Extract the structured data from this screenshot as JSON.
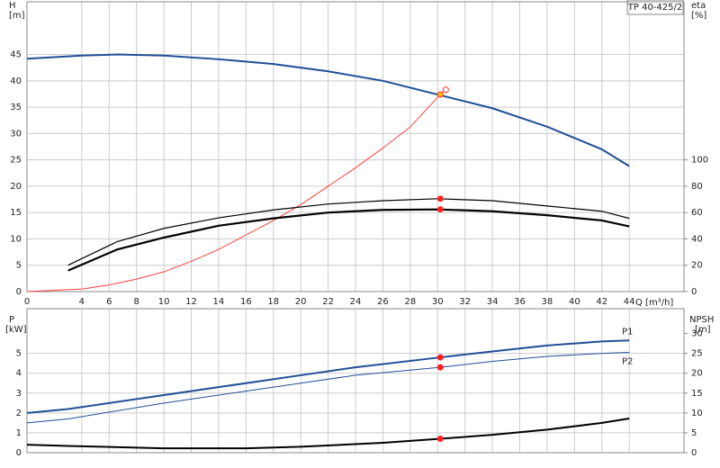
{
  "chart_data": [
    {
      "type": "line",
      "title": "TP 40-425/2",
      "ylabel": "H",
      "yunit": "[m]",
      "y2label": "eta",
      "y2unit": "[%]",
      "xlabel": "Q [m³/h]",
      "xlim": [
        0,
        48
      ],
      "xticks": [
        0,
        4,
        6,
        8,
        10,
        12,
        14,
        16,
        18,
        20,
        22,
        24,
        26,
        28,
        30,
        32,
        34,
        36,
        38,
        40,
        42,
        44
      ],
      "ylim": [
        0,
        55
      ],
      "yticks": [
        0,
        5,
        10,
        15,
        20,
        25,
        30,
        35,
        40,
        45
      ],
      "y2lim": [
        0,
        220
      ],
      "y2ticks": [
        0,
        20,
        40,
        60,
        80,
        100
      ],
      "grid": true,
      "series": [
        {
          "color": "#1f4e96",
          "width": 2,
          "x": [
            0,
            4,
            6.6,
            10,
            14,
            18,
            22,
            26,
            30,
            34,
            38,
            42,
            44
          ],
          "values": [
            44.2,
            44.8,
            45,
            44.8,
            44.1,
            43.2,
            41.8,
            40,
            37.4,
            34.8,
            31.3,
            27,
            23.8
          ]
        },
        {
          "color": "#ff4040",
          "width": 1,
          "axis": "y2",
          "x": [
            0,
            4,
            6,
            8,
            10,
            12,
            14,
            16,
            18,
            20,
            22,
            24,
            26,
            28,
            30.4
          ],
          "values": [
            0,
            2,
            5,
            9.5,
            15,
            23,
            32,
            43,
            54,
            66,
            80,
            94,
            109,
            125,
            152
          ]
        },
        {
          "color": "#000000",
          "width": 1.2,
          "axis": "y2",
          "x": [
            3,
            6.6,
            10,
            14,
            18,
            22,
            26,
            30,
            34,
            38,
            42,
            44
          ],
          "values": [
            20,
            38,
            48,
            56,
            62,
            66.5,
            69,
            70.5,
            69,
            65,
            61,
            55.6
          ]
        },
        {
          "color": "#000000",
          "width": 2.2,
          "axis": "y2",
          "x": [
            3,
            6.6,
            10,
            14,
            18,
            22,
            26,
            30,
            34,
            38,
            42,
            44
          ],
          "values": [
            16,
            32,
            41,
            50,
            55.6,
            60,
            62,
            62.4,
            61,
            58,
            54,
            49.5
          ]
        }
      ],
      "points": [
        {
          "x": 30.6,
          "y": 38.3,
          "color": "#ffffff",
          "stroke": "#ff3030"
        },
        {
          "x": 30.2,
          "y": 37.4,
          "color": "#f5c400",
          "stroke": "#ff3030"
        },
        {
          "x": 30.2,
          "y": 70.5,
          "axis": "y2",
          "color": "#ff2020",
          "stroke": "#ff2020"
        },
        {
          "x": 30.2,
          "y": 62.4,
          "axis": "y2",
          "color": "#ff2020",
          "stroke": "#ff2020"
        }
      ]
    },
    {
      "type": "line",
      "ylabel": "P",
      "yunit": "[kW]",
      "y2label": "NPSH",
      "y2unit": "[m]",
      "xlim": [
        0,
        48
      ],
      "ylim": [
        0,
        7.25
      ],
      "yticks": [
        0,
        1,
        2,
        3,
        4,
        5
      ],
      "y2lim": [
        0,
        36.25
      ],
      "y2ticks": [
        0,
        5,
        10,
        15,
        20,
        25,
        30
      ],
      "grid": true,
      "series": [
        {
          "name": "P1",
          "color": "#1f4e96",
          "width": 2,
          "x": [
            0,
            3,
            10,
            14,
            20,
            24,
            30.2,
            34,
            38,
            42,
            44
          ],
          "values": [
            2,
            2.2,
            2.9,
            3.3,
            3.9,
            4.3,
            4.8,
            5.1,
            5.4,
            5.6,
            5.65
          ]
        },
        {
          "name": "P2",
          "color": "#1f4e96",
          "width": 1,
          "x": [
            0,
            3,
            10,
            14,
            20,
            24,
            30.2,
            34,
            38,
            42,
            44
          ],
          "values": [
            1.5,
            1.7,
            2.5,
            2.9,
            3.5,
            3.9,
            4.3,
            4.6,
            4.85,
            5.0,
            5.05
          ]
        },
        {
          "color": "#000000",
          "width": 2,
          "axis": "y2",
          "x": [
            0,
            3,
            10,
            16,
            20,
            26,
            30.2,
            34,
            38,
            42,
            44
          ],
          "values": [
            2,
            1.7,
            1.1,
            1.1,
            1.5,
            2.5,
            3.5,
            4.5,
            5.8,
            7.5,
            8.6
          ]
        }
      ],
      "points": [
        {
          "x": 30.2,
          "y": 4.8,
          "color": "#ff2020",
          "stroke": "#ff2020"
        },
        {
          "x": 30.2,
          "y": 4.3,
          "color": "#ff2020",
          "stroke": "#ff2020"
        },
        {
          "x": 30.2,
          "y": 3.5,
          "axis": "y2",
          "color": "#ff2020",
          "stroke": "#ff2020"
        }
      ]
    }
  ]
}
